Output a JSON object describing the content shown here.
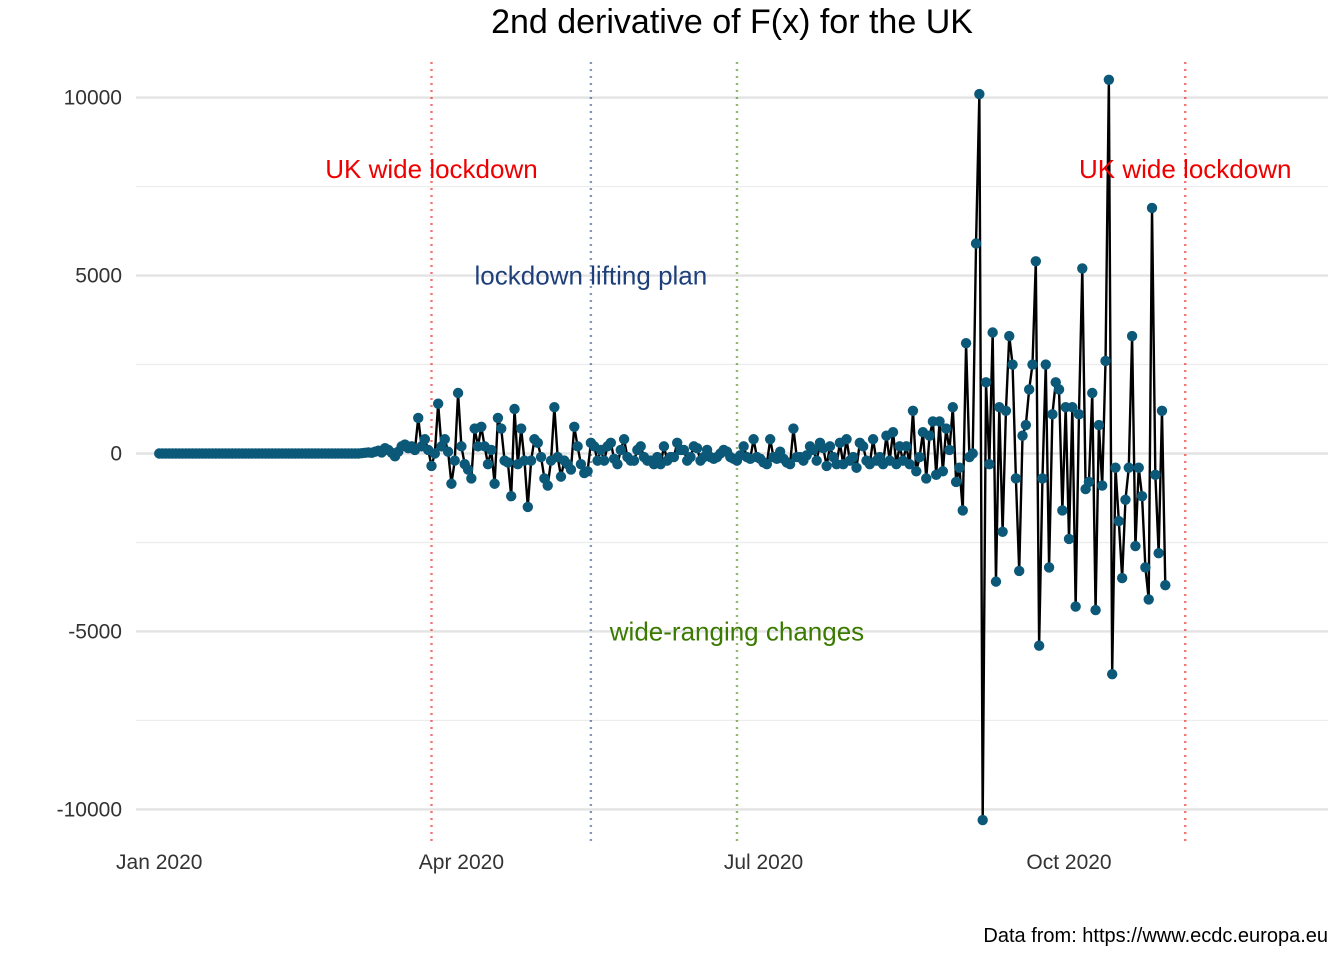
{
  "chart_data": {
    "type": "line",
    "title": "2nd derivative of F(x) for the UK",
    "caption": "Data from: https://www.ecdc.europa.eu",
    "xlabel": "",
    "ylabel": "",
    "x_range": [
      "2019-12-25",
      "2020-12-18"
    ],
    "ylim": [
      -11000,
      11000
    ],
    "y_ticks": [
      -10000,
      -5000,
      0,
      5000,
      10000
    ],
    "x_ticks": [
      {
        "date": "2020-01-01",
        "label": "Jan 2020"
      },
      {
        "date": "2020-04-01",
        "label": "Apr 2020"
      },
      {
        "date": "2020-07-01",
        "label": "Jul 2020"
      },
      {
        "date": "2020-10-01",
        "label": "Oct 2020"
      }
    ],
    "grid": true,
    "line_color": "#000000",
    "point_color": "#0b5878",
    "events": [
      {
        "date": "2020-03-23",
        "label": "UK wide lockdown",
        "color": "#ee0000",
        "label_y": 8000
      },
      {
        "date": "2020-05-10",
        "label": "lockdown lifting plan",
        "color": "#1f3f7a",
        "label_y": 5000
      },
      {
        "date": "2020-06-23",
        "label": "wide-ranging changes",
        "color": "#3a7a00",
        "label_y": -5000
      },
      {
        "date": "2020-11-05",
        "label": "UK wide lockdown",
        "color": "#ee0000",
        "label_y": 8000
      }
    ],
    "series": [
      {
        "start_date": "2020-01-01",
        "values": [
          0,
          0,
          0,
          0,
          0,
          0,
          0,
          0,
          0,
          0,
          0,
          0,
          0,
          0,
          0,
          0,
          0,
          0,
          0,
          0,
          0,
          0,
          0,
          0,
          0,
          0,
          0,
          0,
          0,
          0,
          0,
          0,
          0,
          0,
          0,
          0,
          0,
          0,
          0,
          0,
          0,
          0,
          0,
          0,
          0,
          0,
          0,
          0,
          0,
          0,
          0,
          0,
          0,
          0,
          0,
          0,
          0,
          0,
          0,
          0,
          0,
          10,
          20,
          30,
          20,
          50,
          80,
          30,
          150,
          100,
          20,
          -80,
          50,
          200,
          250,
          150,
          200,
          100,
          1000,
          200,
          400,
          100,
          -350,
          0,
          1400,
          200,
          400,
          50,
          -850,
          -200,
          1700,
          200,
          -300,
          -450,
          -700,
          700,
          200,
          750,
          200,
          -300,
          100,
          -850,
          1000,
          700,
          -200,
          -250,
          -1200,
          1250,
          -300,
          700,
          -200,
          -1500,
          -200,
          400,
          300,
          -100,
          -700,
          -900,
          -200,
          1300,
          -100,
          -650,
          -200,
          -300,
          -450,
          750,
          200,
          -300,
          -550,
          -500,
          300,
          200,
          -200,
          100,
          -200,
          200,
          300,
          -150,
          -300,
          100,
          400,
          -100,
          -200,
          -200,
          100,
          200,
          -100,
          -200,
          -200,
          -300,
          -100,
          -300,
          200,
          -200,
          -100,
          -100,
          300,
          100,
          100,
          -200,
          -100,
          200,
          150,
          -200,
          -100,
          100,
          -100,
          -150,
          -100,
          0,
          100,
          50,
          -100,
          -150,
          -200,
          -50,
          200,
          -100,
          -150,
          400,
          -100,
          -150,
          -250,
          -300,
          400,
          -100,
          -150,
          50,
          -150,
          -250,
          -300,
          700,
          -100,
          -100,
          -200,
          -50,
          200,
          100,
          -200,
          300,
          150,
          -350,
          200,
          -100,
          -300,
          300,
          -300,
          400,
          -200,
          -100,
          -400,
          300,
          200,
          -200,
          -300,
          400,
          -200,
          -100,
          -300,
          500,
          -200,
          600,
          -300,
          200,
          -200,
          200,
          -300,
          1200,
          -500,
          -100,
          600,
          -700,
          500,
          900,
          -600,
          900,
          -500,
          700,
          100,
          1300,
          -800,
          -400,
          -1600,
          3100,
          -100,
          0,
          5900,
          10100,
          -10300,
          2000,
          -300,
          3400,
          -3600,
          1300,
          -2200,
          1200,
          3300,
          2500,
          -700,
          -3300,
          500,
          800,
          1800,
          2500,
          5400,
          -5400,
          -700,
          2500,
          -3200,
          1100,
          2000,
          1800,
          -1600,
          1300,
          -2400,
          1300,
          -4300,
          1100,
          5200,
          -1000,
          -800,
          1700,
          -4400,
          800,
          -900,
          2600,
          10500,
          -6200,
          -400,
          -1900,
          -3500,
          -1300,
          -400,
          3300,
          -2600,
          -400,
          -1200,
          -3200,
          -4100,
          6900,
          -600,
          -2800,
          1200,
          -3700
        ]
      }
    ]
  }
}
